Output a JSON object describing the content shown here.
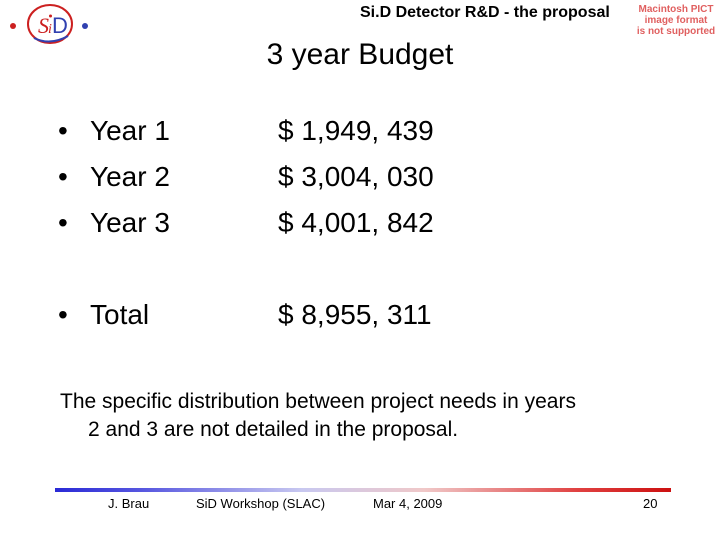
{
  "header": {
    "title": "Si.D Detector R&D - the proposal",
    "pict_warning": [
      "Macintosh PICT",
      "image format",
      "is not supported"
    ],
    "logo_text": "SiD"
  },
  "slide": {
    "title": "3 year Budget",
    "bullet": "•",
    "rows": [
      {
        "label": "Year 1",
        "amount": "$ 1,949, 439"
      },
      {
        "label": "Year 2",
        "amount": "$ 3,004, 030"
      },
      {
        "label": "Year 3",
        "amount": "$ 4,001, 842"
      }
    ],
    "total": {
      "label": "Total",
      "amount": "$ 8,955, 311"
    },
    "note_line1": "The specific distribution between project needs in years",
    "note_line2": "2 and 3 are not detailed in the proposal."
  },
  "footer": {
    "author": "J. Brau",
    "event": "SiD Workshop (SLAC)",
    "date": "Mar 4, 2009",
    "page": "20"
  },
  "colors": {
    "logo_red": "#cc2020",
    "logo_blue": "#3040b0",
    "warning": "#e06060"
  }
}
